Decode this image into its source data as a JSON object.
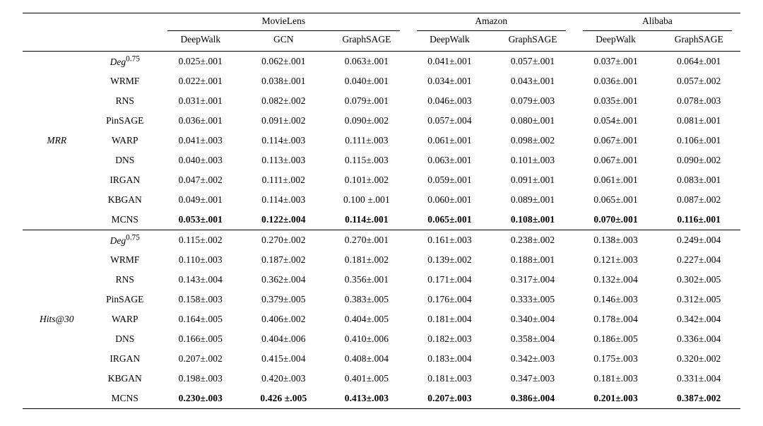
{
  "type": "table",
  "background_color": "#ffffff",
  "text_color": "#000000",
  "font_family": "Times New Roman",
  "font_size_body": 13.5,
  "font_size_header": 14,
  "rule_color": "#000000",
  "rule_top_width": 1.4,
  "rule_mid_width": 0.8,
  "datasets": [
    {
      "name": "MovieLens",
      "cols": [
        "DeepWalk",
        "GCN",
        "GraphSAGE"
      ]
    },
    {
      "name": "Amazon",
      "cols": [
        "DeepWalk",
        "GraphSAGE"
      ]
    },
    {
      "name": "Alibaba",
      "cols": [
        "DeepWalk",
        "GraphSAGE"
      ]
    }
  ],
  "sections": [
    {
      "metric": "MRR",
      "rows": [
        {
          "method_html": "Deg_sup",
          "bold": false,
          "cells": [
            "0.025±.001",
            "0.062±.001",
            "0.063±.001",
            "0.041±.001",
            "0.057±.001",
            "0.037±.001",
            "0.064±.001"
          ]
        },
        {
          "method": "WRMF",
          "bold": false,
          "cells": [
            "0.022±.001",
            "0.038±.001",
            "0.040±.001",
            "0.034±.001",
            "0.043±.001",
            "0.036±.001",
            "0.057±.002"
          ]
        },
        {
          "method": "RNS",
          "bold": false,
          "cells": [
            "0.031±.001",
            "0.082±.002",
            "0.079±.001",
            "0.046±.003",
            "0.079±.003",
            "0.035±.001",
            "0.078±.003"
          ]
        },
        {
          "method": "PinSAGE",
          "bold": false,
          "cells": [
            "0.036±.001",
            "0.091±.002",
            "0.090±.002",
            "0.057±.004",
            "0.080±.001",
            "0.054±.001",
            "0.081±.001"
          ]
        },
        {
          "method": "WARP",
          "bold": false,
          "cells": [
            "0.041±.003",
            "0.114±.003",
            "0.111±.003",
            "0.061±.001",
            "0.098±.002",
            "0.067±.001",
            "0.106±.001"
          ]
        },
        {
          "method": "DNS",
          "bold": false,
          "cells": [
            "0.040±.003",
            "0.113±.003",
            "0.115±.003",
            "0.063±.001",
            "0.101±.003",
            "0.067±.001",
            "0.090±.002"
          ]
        },
        {
          "method": "IRGAN",
          "bold": false,
          "cells": [
            "0.047±.002",
            "0.111±.002",
            "0.101±.002",
            "0.059±.001",
            "0.091±.001",
            "0.061±.001",
            "0.083±.001"
          ]
        },
        {
          "method": "KBGAN",
          "bold": false,
          "cells": [
            "0.049±.001",
            "0.114±.003",
            "0.100 ±.001",
            "0.060±.001",
            "0.089±.001",
            "0.065±.001",
            "0.087±.002"
          ]
        },
        {
          "method": "MCNS",
          "bold": true,
          "cells": [
            "0.053±.001",
            "0.122±.004",
            "0.114±.001",
            "0.065±.001",
            "0.108±.001",
            "0.070±.001",
            "0.116±.001"
          ]
        }
      ]
    },
    {
      "metric": "Hits@30",
      "rows": [
        {
          "method_html": "Deg_sup",
          "bold": false,
          "cells": [
            "0.115±.002",
            "0.270±.002",
            "0.270±.001",
            "0.161±.003",
            "0.238±.002",
            "0.138±.003",
            "0.249±.004"
          ]
        },
        {
          "method": "WRMF",
          "bold": false,
          "cells": [
            "0.110±.003",
            "0.187±.002",
            "0.181±.002",
            "0.139±.002",
            "0.188±.001",
            "0.121±.003",
            "0.227±.004"
          ]
        },
        {
          "method": "RNS",
          "bold": false,
          "cells": [
            "0.143±.004",
            "0.362±.004",
            "0.356±.001",
            "0.171±.004",
            "0.317±.004",
            "0.132±.004",
            "0.302±.005"
          ]
        },
        {
          "method": "PinSAGE",
          "bold": false,
          "cells": [
            "0.158±.003",
            "0.379±.005",
            "0.383±.005",
            "0.176±.004",
            "0.333±.005",
            "0.146±.003",
            "0.312±.005"
          ]
        },
        {
          "method": "WARP",
          "bold": false,
          "cells": [
            "0.164±.005",
            "0.406±.002",
            "0.404±.005",
            "0.181±.004",
            "0.340±.004",
            "0.178±.004",
            "0.342±.004"
          ]
        },
        {
          "method": "DNS",
          "bold": false,
          "cells": [
            "0.166±.005",
            "0.404±.006",
            "0.410±.006",
            "0.182±.003",
            "0.358±.004",
            "0.186±.005",
            "0.336±.004"
          ]
        },
        {
          "method": "IRGAN",
          "bold": false,
          "cells": [
            "0.207±.002",
            "0.415±.004",
            "0.408±.004",
            "0.183±.004",
            "0.342±.003",
            "0.175±.003",
            "0.320±.002"
          ]
        },
        {
          "method": "KBGAN",
          "bold": false,
          "cells": [
            "0.198±.003",
            "0.420±.003",
            "0.401±.005",
            "0.181±.003",
            "0.347±.003",
            "0.181±.003",
            "0.331±.004"
          ]
        },
        {
          "method": "MCNS",
          "bold": true,
          "cells": [
            "0.230±.003",
            "0.426 ±.005",
            "0.413±.003",
            "0.207±.003",
            "0.386±.004",
            "0.201±.003",
            "0.387±.002"
          ]
        }
      ]
    }
  ],
  "deg_label": {
    "base": "Deg",
    "sup": "0.75"
  }
}
